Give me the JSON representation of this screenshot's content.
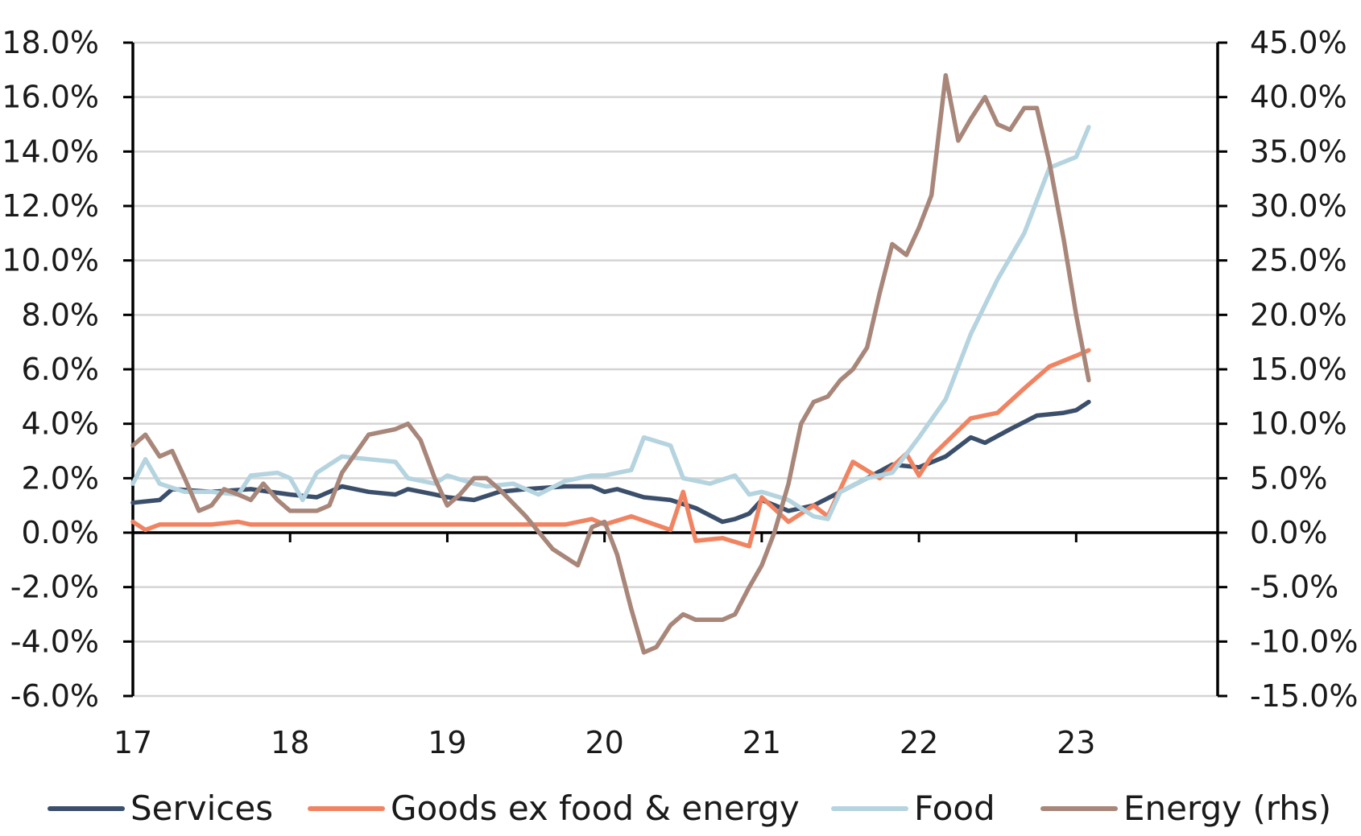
{
  "chart_data": {
    "type": "line",
    "title": "",
    "xlabel": "",
    "ylabel": "",
    "x_ticks": [
      "17",
      "18",
      "19",
      "20",
      "21",
      "22",
      "23"
    ],
    "x_range": [
      2017.0,
      2023.9
    ],
    "y_left": {
      "ylim": [
        -6.0,
        18.0
      ],
      "ticks": [
        "18.0%",
        "16.0%",
        "14.0%",
        "12.0%",
        "10.0%",
        "8.0%",
        "6.0%",
        "4.0%",
        "2.0%",
        "0.0%",
        "-2.0%",
        "-4.0%",
        "-6.0%"
      ]
    },
    "y_right": {
      "ylim": [
        -15.0,
        45.0
      ],
      "ticks": [
        "45.0%",
        "40.0%",
        "35.0%",
        "30.0%",
        "25.0%",
        "20.0%",
        "15.0%",
        "10.0%",
        "5.0%",
        "0.0%",
        "-5.0%",
        "-10.0%",
        "-15.0%"
      ]
    },
    "grid": "horizontal",
    "legend_position": "bottom",
    "series": [
      {
        "name": "Services",
        "axis": "left",
        "color": "#3b4f6b",
        "points": [
          [
            2017.0,
            1.1
          ],
          [
            2017.17,
            1.2
          ],
          [
            2017.25,
            1.6
          ],
          [
            2017.5,
            1.5
          ],
          [
            2017.75,
            1.6
          ],
          [
            2018.0,
            1.4
          ],
          [
            2018.17,
            1.3
          ],
          [
            2018.33,
            1.7
          ],
          [
            2018.5,
            1.5
          ],
          [
            2018.67,
            1.4
          ],
          [
            2018.75,
            1.6
          ],
          [
            2018.92,
            1.4
          ],
          [
            2019.0,
            1.3
          ],
          [
            2019.17,
            1.2
          ],
          [
            2019.33,
            1.5
          ],
          [
            2019.5,
            1.6
          ],
          [
            2019.75,
            1.7
          ],
          [
            2019.92,
            1.7
          ],
          [
            2020.0,
            1.5
          ],
          [
            2020.08,
            1.6
          ],
          [
            2020.25,
            1.3
          ],
          [
            2020.42,
            1.2
          ],
          [
            2020.58,
            0.9
          ],
          [
            2020.75,
            0.4
          ],
          [
            2020.83,
            0.5
          ],
          [
            2020.92,
            0.7
          ],
          [
            2021.0,
            1.2
          ],
          [
            2021.17,
            0.8
          ],
          [
            2021.33,
            1.0
          ],
          [
            2021.5,
            1.5
          ],
          [
            2021.67,
            2.0
          ],
          [
            2021.83,
            2.5
          ],
          [
            2022.0,
            2.4
          ],
          [
            2022.17,
            2.8
          ],
          [
            2022.33,
            3.5
          ],
          [
            2022.42,
            3.3
          ],
          [
            2022.58,
            3.8
          ],
          [
            2022.75,
            4.3
          ],
          [
            2022.92,
            4.4
          ],
          [
            2023.0,
            4.5
          ],
          [
            2023.08,
            4.8
          ]
        ]
      },
      {
        "name": "Goods ex food & energy",
        "axis": "left",
        "color": "#f08462",
        "points": [
          [
            2017.0,
            0.4
          ],
          [
            2017.08,
            0.1
          ],
          [
            2017.17,
            0.3
          ],
          [
            2017.33,
            0.3
          ],
          [
            2017.5,
            0.3
          ],
          [
            2017.67,
            0.4
          ],
          [
            2017.75,
            0.3
          ],
          [
            2018.0,
            0.3
          ],
          [
            2018.25,
            0.3
          ],
          [
            2018.5,
            0.3
          ],
          [
            2018.75,
            0.3
          ],
          [
            2019.0,
            0.3
          ],
          [
            2019.25,
            0.3
          ],
          [
            2019.5,
            0.3
          ],
          [
            2019.75,
            0.3
          ],
          [
            2019.92,
            0.5
          ],
          [
            2020.0,
            0.3
          ],
          [
            2020.17,
            0.6
          ],
          [
            2020.42,
            0.1
          ],
          [
            2020.5,
            1.5
          ],
          [
            2020.58,
            -0.3
          ],
          [
            2020.75,
            -0.2
          ],
          [
            2020.92,
            -0.5
          ],
          [
            2021.0,
            1.3
          ],
          [
            2021.17,
            0.4
          ],
          [
            2021.33,
            1.0
          ],
          [
            2021.42,
            0.6
          ],
          [
            2021.58,
            2.6
          ],
          [
            2021.75,
            2.0
          ],
          [
            2021.92,
            2.9
          ],
          [
            2022.0,
            2.1
          ],
          [
            2022.08,
            2.8
          ],
          [
            2022.33,
            4.2
          ],
          [
            2022.5,
            4.4
          ],
          [
            2022.67,
            5.3
          ],
          [
            2022.83,
            6.1
          ],
          [
            2023.0,
            6.5
          ],
          [
            2023.08,
            6.7
          ]
        ]
      },
      {
        "name": "Food",
        "axis": "left",
        "color": "#b5d4df",
        "points": [
          [
            2017.0,
            1.8
          ],
          [
            2017.08,
            2.7
          ],
          [
            2017.17,
            1.8
          ],
          [
            2017.33,
            1.5
          ],
          [
            2017.5,
            1.5
          ],
          [
            2017.67,
            1.4
          ],
          [
            2017.75,
            2.1
          ],
          [
            2017.92,
            2.2
          ],
          [
            2018.0,
            2.0
          ],
          [
            2018.08,
            1.2
          ],
          [
            2018.17,
            2.2
          ],
          [
            2018.33,
            2.8
          ],
          [
            2018.5,
            2.7
          ],
          [
            2018.67,
            2.6
          ],
          [
            2018.75,
            2.0
          ],
          [
            2018.92,
            1.8
          ],
          [
            2019.0,
            2.1
          ],
          [
            2019.17,
            1.8
          ],
          [
            2019.25,
            1.7
          ],
          [
            2019.42,
            1.8
          ],
          [
            2019.58,
            1.4
          ],
          [
            2019.75,
            1.9
          ],
          [
            2019.92,
            2.1
          ],
          [
            2020.0,
            2.1
          ],
          [
            2020.17,
            2.3
          ],
          [
            2020.25,
            3.5
          ],
          [
            2020.42,
            3.2
          ],
          [
            2020.5,
            2.0
          ],
          [
            2020.67,
            1.8
          ],
          [
            2020.83,
            2.1
          ],
          [
            2020.92,
            1.4
          ],
          [
            2021.0,
            1.5
          ],
          [
            2021.17,
            1.2
          ],
          [
            2021.33,
            0.6
          ],
          [
            2021.42,
            0.5
          ],
          [
            2021.5,
            1.5
          ],
          [
            2021.67,
            2.0
          ],
          [
            2021.83,
            2.2
          ],
          [
            2022.0,
            3.5
          ],
          [
            2022.17,
            4.9
          ],
          [
            2022.33,
            7.3
          ],
          [
            2022.5,
            9.3
          ],
          [
            2022.67,
            11.0
          ],
          [
            2022.83,
            13.4
          ],
          [
            2023.0,
            13.8
          ],
          [
            2023.08,
            14.9
          ]
        ]
      },
      {
        "name": "Energy (rhs)",
        "axis": "right",
        "color": "#a8877a",
        "points": [
          [
            2017.0,
            8.0
          ],
          [
            2017.08,
            9.0
          ],
          [
            2017.17,
            7.0
          ],
          [
            2017.25,
            7.5
          ],
          [
            2017.33,
            5.0
          ],
          [
            2017.42,
            2.0
          ],
          [
            2017.5,
            2.5
          ],
          [
            2017.58,
            4.0
          ],
          [
            2017.67,
            3.5
          ],
          [
            2017.75,
            3.0
          ],
          [
            2017.83,
            4.5
          ],
          [
            2017.92,
            3.0
          ],
          [
            2018.0,
            2.0
          ],
          [
            2018.17,
            2.0
          ],
          [
            2018.25,
            2.5
          ],
          [
            2018.33,
            5.5
          ],
          [
            2018.5,
            9.0
          ],
          [
            2018.67,
            9.5
          ],
          [
            2018.75,
            10.0
          ],
          [
            2018.83,
            8.5
          ],
          [
            2018.92,
            5.0
          ],
          [
            2019.0,
            2.5
          ],
          [
            2019.08,
            3.5
          ],
          [
            2019.17,
            5.0
          ],
          [
            2019.25,
            5.0
          ],
          [
            2019.33,
            4.0
          ],
          [
            2019.5,
            1.5
          ],
          [
            2019.67,
            -1.5
          ],
          [
            2019.83,
            -3.0
          ],
          [
            2019.92,
            0.5
          ],
          [
            2020.0,
            1.0
          ],
          [
            2020.08,
            -2.0
          ],
          [
            2020.17,
            -7.0
          ],
          [
            2020.25,
            -11.0
          ],
          [
            2020.33,
            -10.5
          ],
          [
            2020.42,
            -8.5
          ],
          [
            2020.5,
            -7.5
          ],
          [
            2020.58,
            -8.0
          ],
          [
            2020.75,
            -8.0
          ],
          [
            2020.83,
            -7.5
          ],
          [
            2020.92,
            -5.0
          ],
          [
            2021.0,
            -3.0
          ],
          [
            2021.08,
            0.0
          ],
          [
            2021.17,
            4.5
          ],
          [
            2021.25,
            10.0
          ],
          [
            2021.33,
            12.0
          ],
          [
            2021.42,
            12.5
          ],
          [
            2021.5,
            14.0
          ],
          [
            2021.58,
            15.0
          ],
          [
            2021.67,
            17.0
          ],
          [
            2021.75,
            22.0
          ],
          [
            2021.83,
            26.5
          ],
          [
            2021.92,
            25.5
          ],
          [
            2022.0,
            28.0
          ],
          [
            2022.08,
            31.0
          ],
          [
            2022.17,
            42.0
          ],
          [
            2022.25,
            36.0
          ],
          [
            2022.33,
            38.0
          ],
          [
            2022.42,
            40.0
          ],
          [
            2022.5,
            37.5
          ],
          [
            2022.58,
            37.0
          ],
          [
            2022.67,
            39.0
          ],
          [
            2022.75,
            39.0
          ],
          [
            2022.83,
            34.0
          ],
          [
            2022.92,
            27.0
          ],
          [
            2023.0,
            20.0
          ],
          [
            2023.08,
            14.0
          ]
        ]
      }
    ]
  }
}
